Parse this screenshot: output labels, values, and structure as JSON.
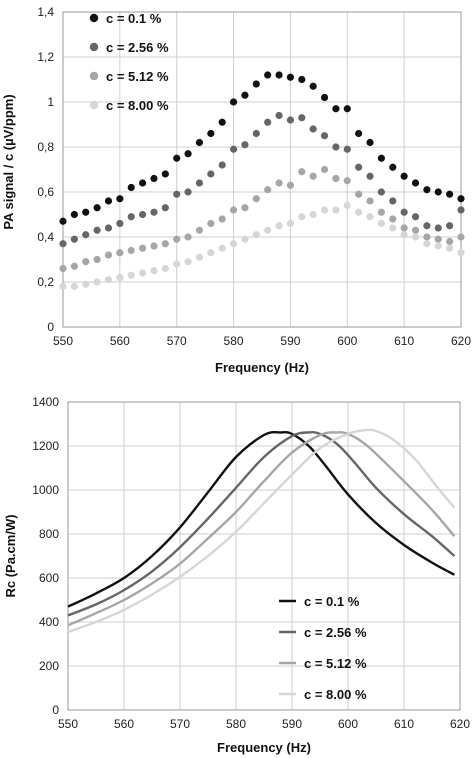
{
  "chart_data": [
    {
      "type": "scatter",
      "xlabel": "Frequency (Hz)",
      "ylabel": "PA signal / c (µV/ppm)",
      "xlim": [
        550,
        620
      ],
      "ylim": [
        0,
        1.4
      ],
      "x_ticks": [
        "550",
        "560",
        "570",
        "580",
        "590",
        "600",
        "610",
        "620"
      ],
      "y_ticks": [
        "0",
        "0,2",
        "0,4",
        "0,6",
        "0,8",
        "1",
        "1,2",
        "1,4"
      ],
      "grid": true,
      "legend_position": "top-left",
      "x": [
        550,
        552,
        554,
        556,
        558,
        560,
        562,
        564,
        566,
        568,
        570,
        572,
        574,
        576,
        578,
        580,
        582,
        584,
        586,
        588,
        590,
        592,
        594,
        596,
        598,
        600,
        602,
        604,
        606,
        608,
        610,
        612,
        614,
        616,
        618,
        620
      ],
      "series": [
        {
          "name": "c = 0.1 %",
          "color": "#111111",
          "values": [
            0.47,
            0.5,
            0.51,
            0.53,
            0.56,
            0.57,
            0.62,
            0.64,
            0.66,
            0.68,
            0.75,
            0.77,
            0.82,
            0.86,
            0.91,
            1.0,
            1.03,
            1.08,
            1.12,
            1.12,
            1.11,
            1.1,
            1.07,
            1.02,
            0.97,
            0.97,
            0.86,
            0.82,
            0.75,
            0.71,
            0.67,
            0.64,
            0.61,
            0.6,
            0.59,
            0.57
          ]
        },
        {
          "name": "c = 2.56 %",
          "color": "#666666",
          "values": [
            0.37,
            0.39,
            0.41,
            0.43,
            0.44,
            0.46,
            0.49,
            0.5,
            0.51,
            0.53,
            0.59,
            0.6,
            0.64,
            0.68,
            0.72,
            0.79,
            0.81,
            0.86,
            0.91,
            0.94,
            0.92,
            0.93,
            0.88,
            0.85,
            0.8,
            0.79,
            0.71,
            0.67,
            0.6,
            0.56,
            0.51,
            0.49,
            0.45,
            0.44,
            0.45,
            0.52
          ]
        },
        {
          "name": "c = 5.12 %",
          "color": "#a6a6a6",
          "values": [
            0.26,
            0.27,
            0.29,
            0.3,
            0.32,
            0.33,
            0.34,
            0.35,
            0.36,
            0.37,
            0.39,
            0.4,
            0.43,
            0.46,
            0.48,
            0.52,
            0.53,
            0.57,
            0.61,
            0.64,
            0.63,
            0.69,
            0.67,
            0.7,
            0.66,
            0.65,
            0.59,
            0.56,
            0.51,
            0.48,
            0.44,
            0.43,
            0.4,
            0.39,
            0.38,
            0.4
          ]
        },
        {
          "name": "c = 8.00 %",
          "color": "#d6d6d6",
          "values": [
            0.18,
            0.18,
            0.19,
            0.2,
            0.21,
            0.22,
            0.23,
            0.24,
            0.25,
            0.26,
            0.28,
            0.29,
            0.31,
            0.33,
            0.35,
            0.37,
            0.39,
            0.41,
            0.43,
            0.45,
            0.46,
            0.49,
            0.5,
            0.52,
            0.52,
            0.54,
            0.51,
            0.49,
            0.46,
            0.44,
            0.41,
            0.4,
            0.37,
            0.36,
            0.35,
            0.33
          ]
        }
      ]
    },
    {
      "type": "line",
      "xlabel": "Frequency (Hz)",
      "ylabel": "Rc (Pa.cm/W)",
      "xlim": [
        550,
        620
      ],
      "ylim": [
        0,
        1400
      ],
      "x_ticks": [
        "550",
        "560",
        "570",
        "580",
        "590",
        "600",
        "610",
        "620"
      ],
      "y_ticks": [
        "0",
        "200",
        "400",
        "600",
        "800",
        "1000",
        "1200",
        "1400"
      ],
      "grid": true,
      "legend_position": "bottom-right",
      "series": [
        {
          "name": "c = 0.1 %",
          "color": "#111111",
          "x": [
            550,
            555,
            560,
            565,
            570,
            575,
            580,
            585,
            588,
            590,
            593,
            596,
            600,
            605,
            610,
            615,
            619
          ],
          "values": [
            470,
            530,
            600,
            700,
            830,
            990,
            1150,
            1250,
            1262,
            1255,
            1200,
            1110,
            980,
            850,
            750,
            670,
            615
          ]
        },
        {
          "name": "c = 2.56 %",
          "color": "#666666",
          "x": [
            550,
            555,
            560,
            565,
            570,
            575,
            580,
            585,
            590,
            593,
            595,
            598,
            601,
            605,
            610,
            615,
            619
          ],
          "values": [
            430,
            480,
            545,
            630,
            740,
            870,
            1010,
            1150,
            1245,
            1262,
            1255,
            1210,
            1130,
            1010,
            890,
            790,
            700
          ]
        },
        {
          "name": "c = 5.12 %",
          "color": "#a6a6a6",
          "x": [
            550,
            555,
            560,
            565,
            570,
            575,
            580,
            585,
            590,
            595,
            598,
            600,
            603,
            606,
            610,
            615,
            619
          ],
          "values": [
            385,
            440,
            500,
            575,
            665,
            780,
            900,
            1040,
            1170,
            1250,
            1262,
            1255,
            1210,
            1140,
            1040,
            910,
            790
          ]
        },
        {
          "name": "c = 8.00 %",
          "color": "#d6d6d6",
          "x": [
            550,
            555,
            560,
            565,
            570,
            575,
            580,
            585,
            590,
            595,
            600,
            603,
            605,
            608,
            612,
            616,
            619
          ],
          "values": [
            355,
            400,
            455,
            525,
            605,
            700,
            810,
            940,
            1070,
            1190,
            1255,
            1272,
            1268,
            1230,
            1140,
            1010,
            920
          ]
        }
      ]
    }
  ]
}
